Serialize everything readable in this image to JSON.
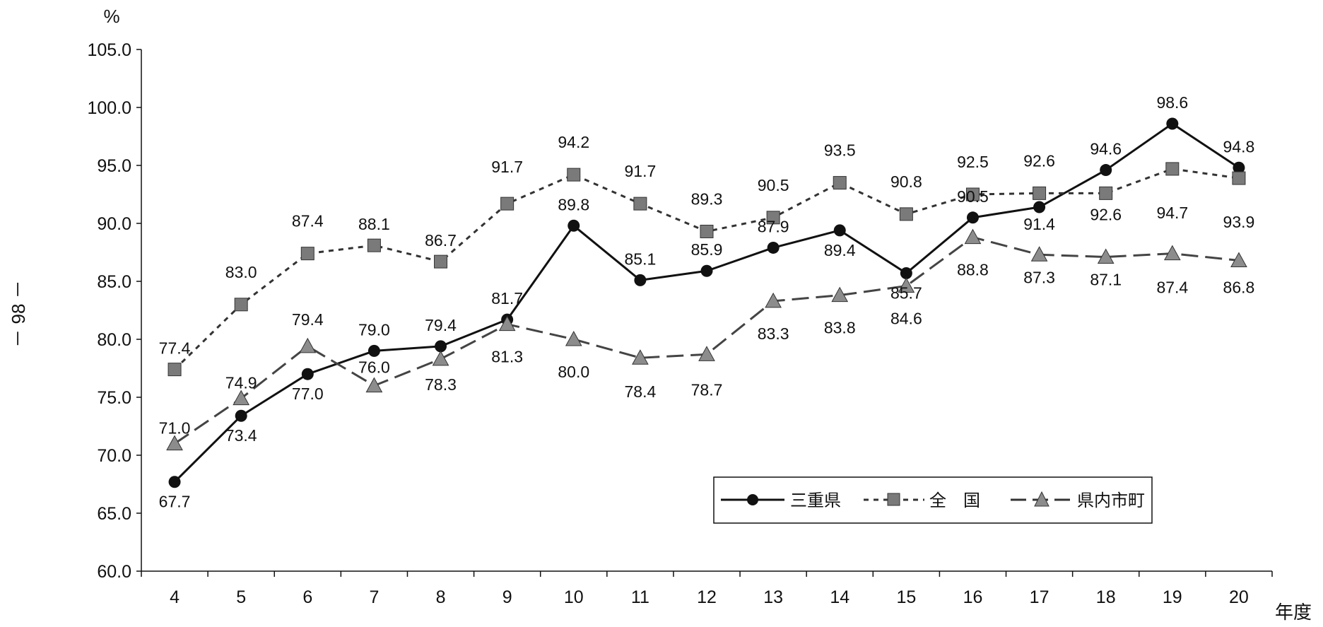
{
  "page_number": "－ 98 －",
  "chart_data": {
    "type": "line",
    "title": "",
    "xlabel": "年度",
    "ylabel": "%",
    "ylim": [
      60,
      105
    ],
    "ytick_step": 5,
    "x": [
      4,
      5,
      6,
      7,
      8,
      9,
      10,
      11,
      12,
      13,
      14,
      15,
      16,
      17,
      18,
      19,
      20
    ],
    "grid": false,
    "legend_position": "bottom-right",
    "series": [
      {
        "name": "三重県",
        "values": [
          67.7,
          73.4,
          77.0,
          79.0,
          79.4,
          81.7,
          89.8,
          85.1,
          85.9,
          87.9,
          89.4,
          85.7,
          90.5,
          91.4,
          94.6,
          98.6,
          94.8
        ],
        "color": "#111111",
        "marker": "circle",
        "line_style": "solid"
      },
      {
        "name": "全　国",
        "values": [
          77.4,
          83.0,
          87.4,
          88.1,
          86.7,
          91.7,
          94.2,
          91.7,
          89.3,
          90.5,
          93.5,
          90.8,
          92.5,
          92.6,
          92.6,
          94.7,
          93.9
        ],
        "color": "#7a7a7a",
        "marker": "square",
        "line_style": "dotted"
      },
      {
        "name": "県内市町",
        "values": [
          71.0,
          74.9,
          79.4,
          76.0,
          78.3,
          81.3,
          80.0,
          78.4,
          78.7,
          83.3,
          83.8,
          84.6,
          88.8,
          87.3,
          87.1,
          87.4,
          86.8
        ],
        "color": "#8c8c8c",
        "marker": "triangle",
        "line_style": "dashed"
      }
    ]
  }
}
